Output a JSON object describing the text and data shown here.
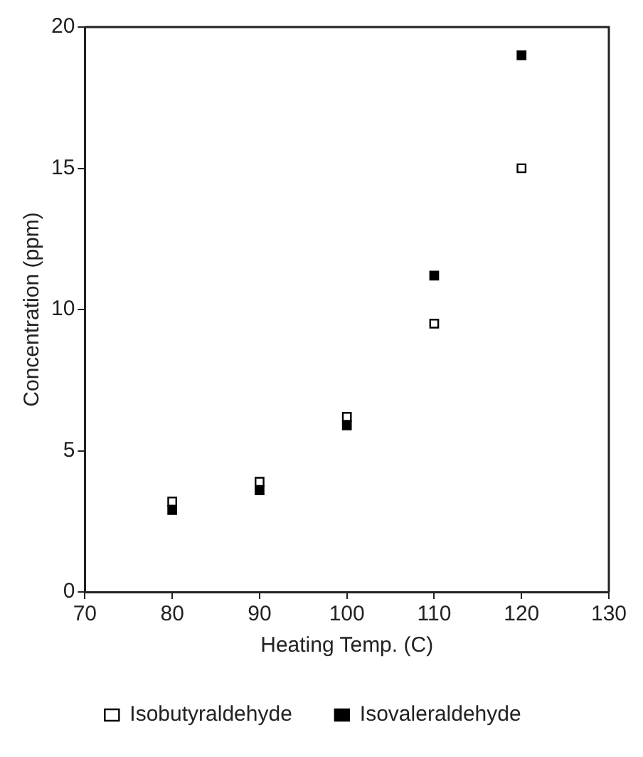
{
  "chart_data": {
    "type": "scatter",
    "xlabel": "Heating Temp. (C)",
    "ylabel": "Concentration (ppm)",
    "x": [
      80,
      90,
      100,
      110,
      120
    ],
    "series": [
      {
        "name": "Isobutyraldehyde",
        "color": "#000000",
        "values": [
          3.2,
          3.9,
          6.2,
          9.5,
          15.0
        ]
      },
      {
        "name": "Isovaleraldehyde",
        "color": "#000000",
        "values": [
          2.9,
          3.6,
          5.9,
          11.2,
          19.0
        ]
      }
    ],
    "xlim": [
      70,
      130
    ],
    "xticks": [
      70,
      80,
      90,
      100,
      110,
      120,
      130
    ],
    "ylim": [
      0,
      20
    ],
    "yticks": [
      0,
      5,
      10,
      15,
      20
    ],
    "grid": false,
    "legend": "bottom",
    "marker": "square"
  }
}
